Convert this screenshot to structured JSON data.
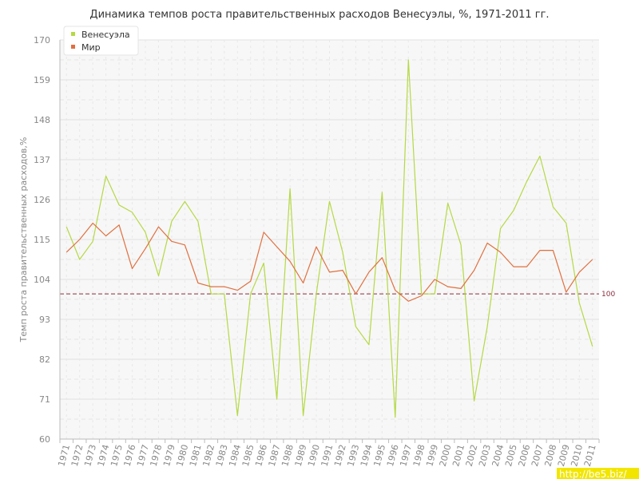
{
  "chart_data": {
    "type": "line",
    "title": "Динамика темпов роста правительственных расходов Венесуэлы, %, 1971-2011 гг.",
    "xlabel": "",
    "ylabel": "Темп роста правительственных расходов,%",
    "ylim": [
      60,
      170
    ],
    "yticks": [
      60,
      71,
      82,
      93,
      104,
      115,
      126,
      137,
      148,
      159,
      170
    ],
    "x": [
      "1971",
      "1972",
      "1973",
      "1974",
      "1975",
      "1976",
      "1977",
      "1978",
      "1979",
      "1980",
      "1981",
      "1982",
      "1983",
      "1984",
      "1985",
      "1986",
      "1987",
      "1988",
      "1989",
      "1990",
      "1991",
      "1992",
      "1993",
      "1994",
      "1995",
      "1996",
      "1997",
      "1998",
      "1999",
      "2000",
      "2001",
      "2002",
      "2003",
      "2004",
      "2005",
      "2006",
      "2007",
      "2008",
      "2009",
      "2010",
      "2011"
    ],
    "series": [
      {
        "name": "Венесуэла",
        "color": "#b5d944",
        "values": [
          118.5,
          109.5,
          114.5,
          132.5,
          124.5,
          122.5,
          117,
          105,
          120,
          125.5,
          120,
          100,
          100,
          66.5,
          100,
          108.5,
          71,
          129,
          66.5,
          100,
          125.5,
          111.5,
          91,
          86,
          128,
          66,
          164.5,
          100,
          100,
          125,
          113.5,
          70.5,
          91,
          118,
          123,
          131,
          138,
          124,
          119.5,
          97.5,
          85.5
        ]
      },
      {
        "name": "Мир",
        "color": "#e0703f",
        "values": [
          111.5,
          115,
          119.5,
          116,
          119,
          107,
          112.5,
          118.5,
          114.5,
          113.5,
          103,
          102,
          102,
          101,
          103.5,
          117,
          113,
          109,
          103,
          113,
          106,
          106.5,
          100,
          106,
          110,
          101,
          98,
          99.5,
          104,
          102,
          101.5,
          106.5,
          114,
          111.5,
          107.5,
          107.5,
          112,
          112,
          100.5,
          106,
          109.5
        ]
      }
    ],
    "reference_line": {
      "value": 100,
      "label": "100",
      "color": "#8b2e3c"
    },
    "grid": true,
    "legend_position": "top-left",
    "watermark": "http://be5.biz/"
  }
}
